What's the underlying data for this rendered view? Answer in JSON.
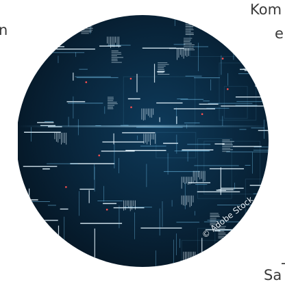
{
  "page": {
    "text_fragments": {
      "left": "n",
      "top_right": "Kom",
      "mid_right": "e",
      "dash": "-",
      "bottom_right": "Sa"
    },
    "image": {
      "credit": "© Adobe Stock",
      "colors": {
        "background_dark": "#061624",
        "background_mid": "#0d3552",
        "line_cyan": "#7fd3ff",
        "line_white": "#e6f6ff",
        "accent_red": "#ff4f4f"
      }
    }
  }
}
